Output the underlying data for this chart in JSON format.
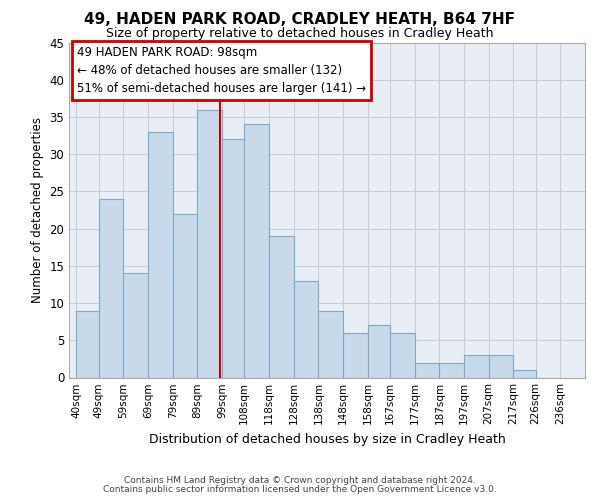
{
  "title": "49, HADEN PARK ROAD, CRADLEY HEATH, B64 7HF",
  "subtitle": "Size of property relative to detached houses in Cradley Heath",
  "xlabel": "Distribution of detached houses by size in Cradley Heath",
  "ylabel": "Number of detached properties",
  "footnote1": "Contains HM Land Registry data © Crown copyright and database right 2024.",
  "footnote2": "Contains public sector information licensed under the Open Government Licence v3.0.",
  "bar_left_edges": [
    40,
    49,
    59,
    69,
    79,
    89,
    99,
    108,
    118,
    128,
    138,
    148,
    158,
    167,
    177,
    187,
    197,
    207,
    217,
    226
  ],
  "bar_widths": [
    9,
    10,
    10,
    10,
    10,
    10,
    9,
    10,
    10,
    10,
    10,
    10,
    9,
    10,
    10,
    10,
    10,
    10,
    9,
    10
  ],
  "bar_heights": [
    9,
    24,
    14,
    33,
    22,
    36,
    32,
    34,
    19,
    13,
    9,
    6,
    7,
    6,
    2,
    2,
    3,
    3,
    1,
    0
  ],
  "bar_color": "#c8daea",
  "bar_edge_color": "#7baac8",
  "tick_labels": [
    "40sqm",
    "49sqm",
    "59sqm",
    "69sqm",
    "79sqm",
    "89sqm",
    "99sqm",
    "108sqm",
    "118sqm",
    "128sqm",
    "138sqm",
    "148sqm",
    "158sqm",
    "167sqm",
    "177sqm",
    "187sqm",
    "197sqm",
    "207sqm",
    "217sqm",
    "226sqm",
    "236sqm"
  ],
  "tick_positions": [
    40,
    49,
    59,
    69,
    79,
    89,
    99,
    108,
    118,
    128,
    138,
    148,
    158,
    167,
    177,
    187,
    197,
    207,
    217,
    226,
    236
  ],
  "ylim": [
    0,
    45
  ],
  "yticks": [
    0,
    5,
    10,
    15,
    20,
    25,
    30,
    35,
    40,
    45
  ],
  "property_line_x": 98,
  "annotation_line1": "49 HADEN PARK ROAD: 98sqm",
  "annotation_line2": "← 48% of detached houses are smaller (132)",
  "annotation_line3": "51% of semi-detached houses are larger (141) →",
  "annotation_box_color": "#cc0000",
  "bg_color": "#e8eef4",
  "plot_bg_color": "#dce8f0",
  "grid_color": "#c0ccd8"
}
